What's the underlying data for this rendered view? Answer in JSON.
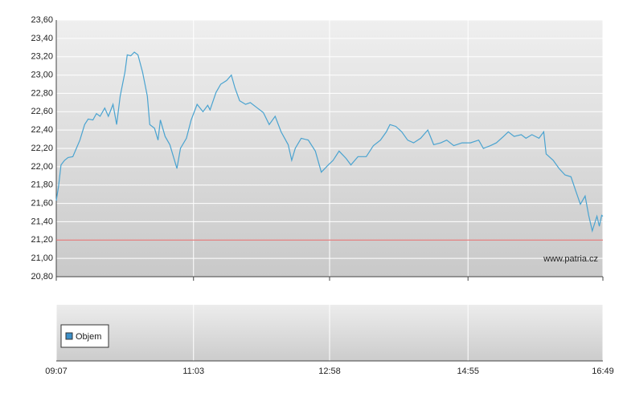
{
  "chart_data": {
    "type": "line",
    "x": [
      "09:07",
      "09:09",
      "09:11",
      "09:14",
      "09:17",
      "09:21",
      "09:24",
      "09:27",
      "09:31",
      "09:34",
      "09:38",
      "09:41",
      "09:44",
      "09:48",
      "09:51",
      "09:55",
      "09:58",
      "10:01",
      "10:05",
      "10:07",
      "10:10",
      "10:13",
      "10:16",
      "10:20",
      "10:24",
      "10:26",
      "10:30",
      "10:33",
      "10:35",
      "10:39",
      "10:43",
      "10:49",
      "10:52",
      "10:57",
      "11:01",
      "11:06",
      "11:11",
      "11:15",
      "11:17",
      "11:22",
      "11:26",
      "11:31",
      "11:35",
      "11:38",
      "11:42",
      "11:47",
      "11:51",
      "11:57",
      "12:02",
      "12:07",
      "12:12",
      "12:17",
      "12:23",
      "12:26",
      "12:29",
      "12:34",
      "12:40",
      "12:46",
      "12:51",
      "12:57",
      "13:01",
      "13:06",
      "13:12",
      "13:16",
      "13:22",
      "13:29",
      "13:35",
      "13:41",
      "13:46",
      "13:49",
      "13:54",
      "13:59",
      "14:04",
      "14:09",
      "14:15",
      "14:21",
      "14:26",
      "14:32",
      "14:37",
      "14:43",
      "14:50",
      "14:57",
      "15:04",
      "15:08",
      "15:14",
      "15:19",
      "15:25",
      "15:29",
      "15:34",
      "15:40",
      "15:44",
      "15:49",
      "15:55",
      "15:59",
      "16:01",
      "16:07",
      "16:12",
      "16:17",
      "16:22",
      "16:26",
      "16:30",
      "16:34",
      "16:37",
      "16:40",
      "16:44",
      "16:46",
      "16:48",
      "16:49"
    ],
    "series": [
      {
        "color": "#4aa3d0",
        "values": [
          21.63,
          21.79,
          22.02,
          22.07,
          22.1,
          22.11,
          22.2,
          22.29,
          22.46,
          22.52,
          22.51,
          22.58,
          22.55,
          22.64,
          22.55,
          22.68,
          22.46,
          22.77,
          23.03,
          23.22,
          23.21,
          23.25,
          23.22,
          23.03,
          22.77,
          22.46,
          22.42,
          22.29,
          22.51,
          22.33,
          22.24,
          21.98,
          22.2,
          22.31,
          22.51,
          22.68,
          22.6,
          22.67,
          22.62,
          22.81,
          22.9,
          22.94,
          23.0,
          22.86,
          22.72,
          22.68,
          22.7,
          22.64,
          22.59,
          22.46,
          22.55,
          22.38,
          22.24,
          22.07,
          22.2,
          22.31,
          22.29,
          22.17,
          21.94,
          22.02,
          22.07,
          22.17,
          22.09,
          22.02,
          22.11,
          22.11,
          22.23,
          22.29,
          22.38,
          22.46,
          22.44,
          22.38,
          22.29,
          22.26,
          22.31,
          22.4,
          22.24,
          22.26,
          22.29,
          22.23,
          22.26,
          22.26,
          22.29,
          22.2,
          22.23,
          22.26,
          22.33,
          22.38,
          22.33,
          22.35,
          22.31,
          22.35,
          22.31,
          22.38,
          22.14,
          22.07,
          21.98,
          21.91,
          21.89,
          21.74,
          21.59,
          21.68,
          21.47,
          21.3,
          21.46,
          21.35,
          21.47,
          21.46
        ]
      }
    ],
    "xlim": [
      "09:07",
      "16:49"
    ],
    "xticks": [
      "09:07",
      "11:03",
      "12:58",
      "14:55",
      "16:49"
    ],
    "ylim": [
      20.8,
      23.6
    ],
    "yticks": [
      {
        "value": 20.8,
        "label": "20,80"
      },
      {
        "value": 21.0,
        "label": "21,00"
      },
      {
        "value": 21.2,
        "label": "21,20"
      },
      {
        "value": 21.4,
        "label": "21,40"
      },
      {
        "value": 21.6,
        "label": "21,60"
      },
      {
        "value": 21.8,
        "label": "21,80"
      },
      {
        "value": 22.0,
        "label": "22,00"
      },
      {
        "value": 22.2,
        "label": "22,20"
      },
      {
        "value": 22.4,
        "label": "22,40"
      },
      {
        "value": 22.6,
        "label": "22,60"
      },
      {
        "value": 22.8,
        "label": "22,80"
      },
      {
        "value": 23.0,
        "label": "23,00"
      },
      {
        "value": 23.2,
        "label": "23,20"
      },
      {
        "value": 23.4,
        "label": "23,40"
      },
      {
        "value": 23.6,
        "label": "23,60"
      }
    ],
    "grid": true,
    "reference_line": {
      "value": 21.2,
      "color": "#e06060"
    },
    "watermark": "www.patria.cz",
    "volume_legend": {
      "name": "Objem",
      "color": "#3b8fc8"
    }
  }
}
